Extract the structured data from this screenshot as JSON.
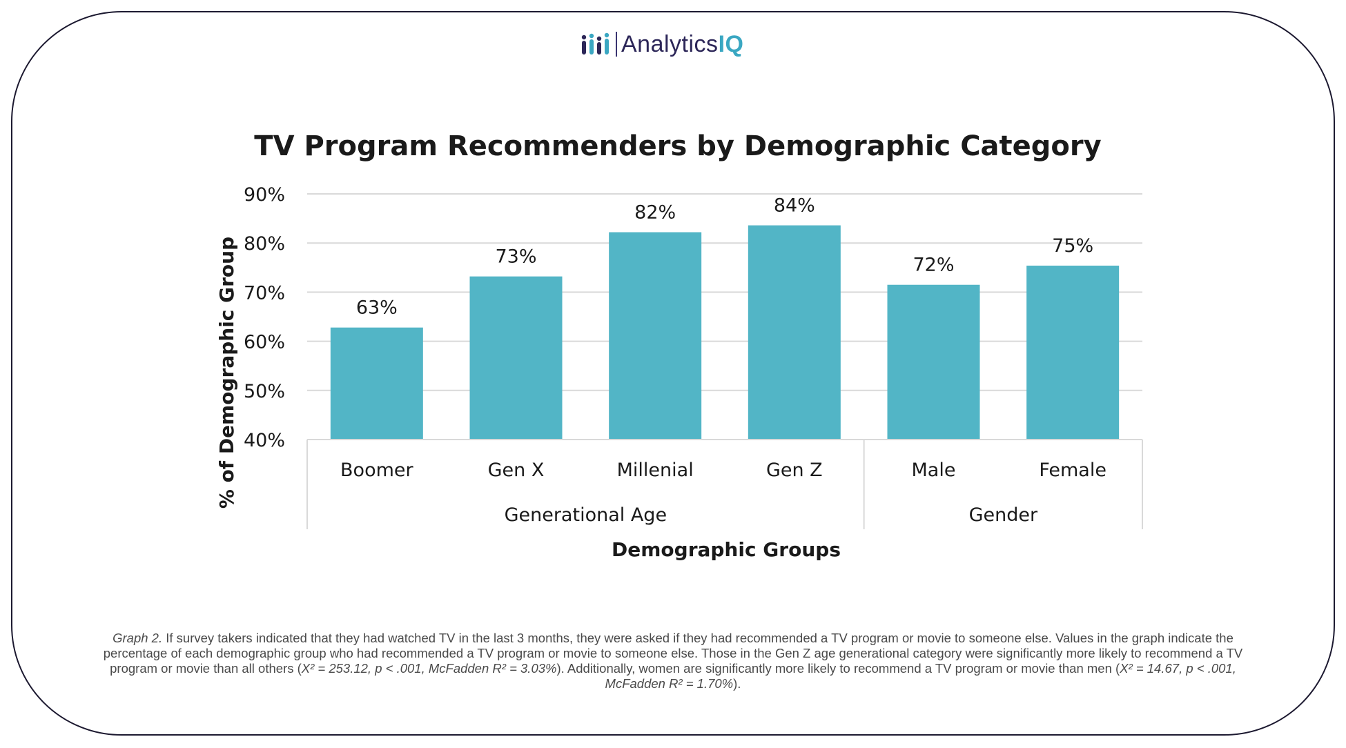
{
  "logo": {
    "name": "Analytics",
    "suffix": "IQ"
  },
  "colors": {
    "bar": "#52b5c6",
    "grid": "#d9d9d9",
    "text": "#1a1a1a",
    "brand": "#2c2658",
    "brand_accent": "#3aa7c2"
  },
  "chart_data": {
    "type": "bar",
    "title": "TV Program Recommenders by Demographic Category",
    "xlabel": "Demographic Groups",
    "ylabel": "% of Demographic Group",
    "ylim": [
      40,
      90
    ],
    "yticks": [
      40,
      50,
      60,
      70,
      80,
      90
    ],
    "ytick_labels": [
      "40%",
      "50%",
      "60%",
      "70%",
      "80%",
      "90%"
    ],
    "categories": [
      "Boomer",
      "Gen X",
      "Millenial",
      "Gen Z",
      "Male",
      "Female"
    ],
    "values": [
      63,
      73,
      82,
      84,
      72,
      75
    ],
    "data_labels": [
      "63%",
      "73%",
      "82%",
      "84%",
      "72%",
      "75%"
    ],
    "actual_values": [
      62.8,
      73.2,
      82.2,
      83.6,
      71.5,
      75.4
    ],
    "groups": [
      {
        "label": "Generational Age",
        "count": 4
      },
      {
        "label": "Gender",
        "count": 2
      }
    ],
    "grid": true
  },
  "caption": {
    "lead": "Graph 2.",
    "part1": " If survey takers indicated that they had watched TV in the last 3 months, they were asked if they had recommended a TV program or movie to someone else. Values in the graph indicate the percentage of each demographic group who had recommended a TV program or movie to someone else. Those in the Gen Z age generational category were significantly more likely to recommend a TV program or movie than all others (",
    "stat1": "X² = 253.12, p < .001, ",
    "mcf1": "McFadden R² = 3.03%",
    "part2": "). Additionally, women are significantly more likely to recommend a TV program or movie than men (",
    "stat2": "X² = 14.67, p < .001, ",
    "mcf2": "McFadden R² = 1.70%",
    "part3": ")."
  }
}
